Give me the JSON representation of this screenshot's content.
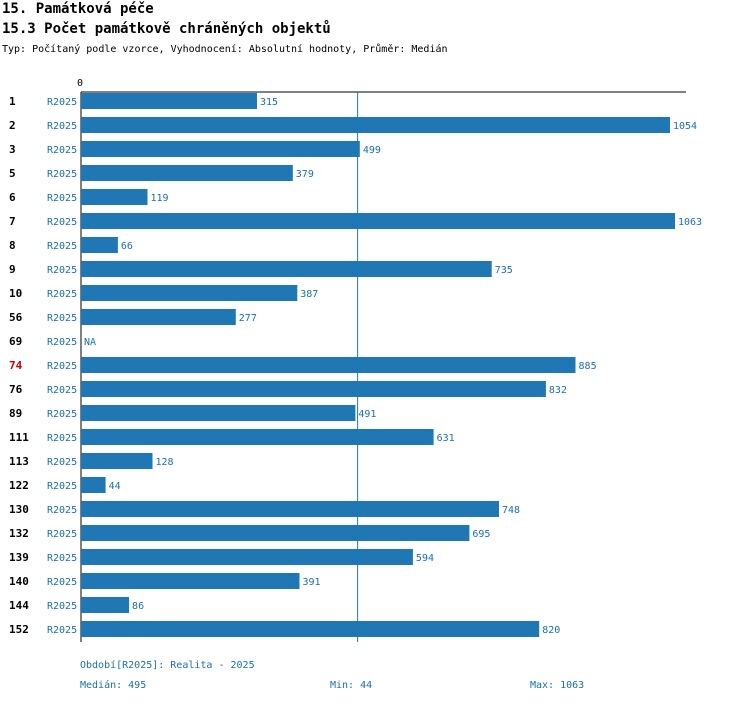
{
  "header": {
    "title": "15. Památková péče",
    "subtitle": "15.3 Počet památkově chráněných objektů",
    "meta": "Typ: Počítaný podle vzorce, Vyhodnocení: Absolutní hodnoty, Průměr: Medián"
  },
  "chart_data": {
    "type": "bar",
    "orientation": "horizontal",
    "axis_zero_label": "0",
    "period_label": "R2025",
    "xlim": [
      0,
      1063
    ],
    "median": 495,
    "highlight_category": "74",
    "colors": {
      "bar": "#1f77b4",
      "label": "#1a6fb0",
      "highlight": "#cc0000",
      "axis": "#000000",
      "median_line": "#1f77b4"
    },
    "categories": [
      "1",
      "2",
      "3",
      "5",
      "6",
      "7",
      "8",
      "9",
      "10",
      "56",
      "69",
      "74",
      "76",
      "89",
      "111",
      "113",
      "122",
      "130",
      "132",
      "139",
      "140",
      "144",
      "152"
    ],
    "values": [
      315,
      1054,
      499,
      379,
      119,
      1063,
      66,
      735,
      387,
      277,
      null,
      885,
      832,
      491,
      631,
      128,
      44,
      748,
      695,
      594,
      391,
      86,
      820
    ],
    "value_labels": [
      "315",
      "1054",
      "499",
      "379",
      "119",
      "1063",
      "66",
      "735",
      "387",
      "277",
      "NA",
      "885",
      "832",
      "491",
      "631",
      "128",
      "44",
      "748",
      "695",
      "594",
      "391",
      "86",
      "820"
    ]
  },
  "footer": {
    "period": "Období[R2025]: Realita - 2025",
    "median": "Medián: 495",
    "min": "Min: 44",
    "max": "Max: 1063"
  }
}
